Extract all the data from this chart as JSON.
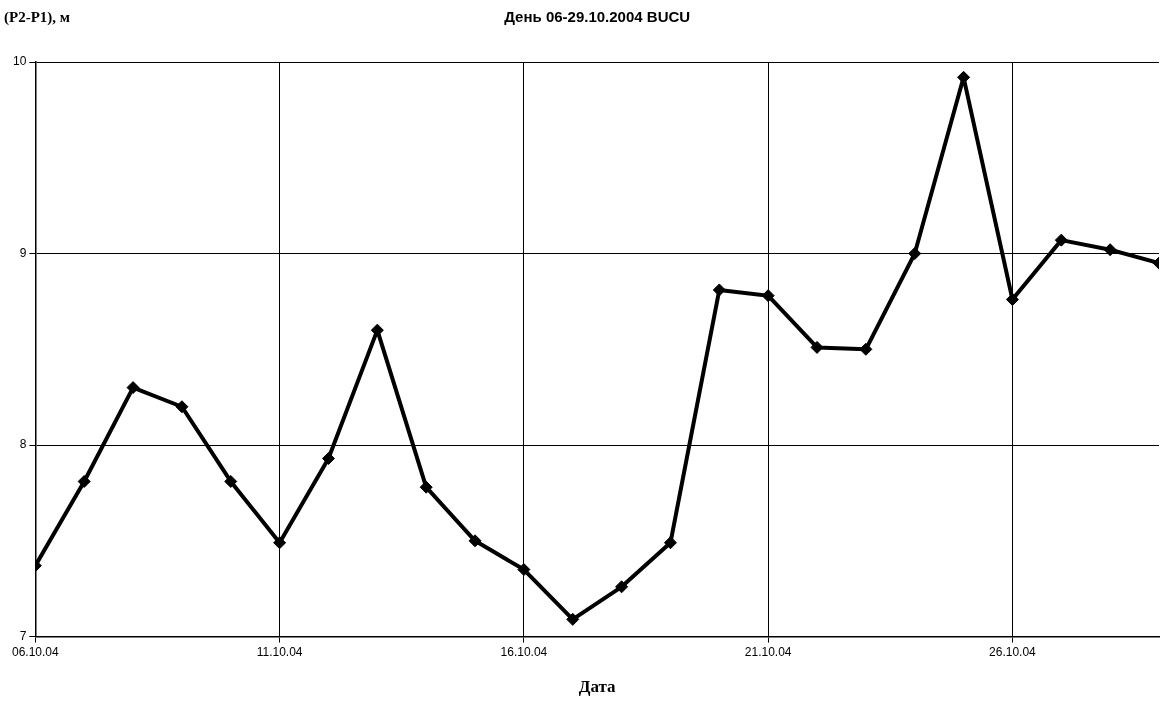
{
  "chart_data": {
    "type": "line",
    "title": "День 06-29.10.2004 BUCU",
    "xlabel": "Дата",
    "ylabel": "(P2-P1), м",
    "x": [
      "2004-10-06",
      "2004-10-07",
      "2004-10-08",
      "2004-10-09",
      "2004-10-10",
      "2004-10-11",
      "2004-10-12",
      "2004-10-13",
      "2004-10-14",
      "2004-10-15",
      "2004-10-16",
      "2004-10-17",
      "2004-10-18",
      "2004-10-19",
      "2004-10-20",
      "2004-10-21",
      "2004-10-22",
      "2004-10-23",
      "2004-10-24",
      "2004-10-25",
      "2004-10-26",
      "2004-10-27",
      "2004-10-28",
      "2004-10-29"
    ],
    "series": [
      {
        "color": "#000000",
        "values": [
          7.37,
          7.81,
          8.3,
          8.2,
          7.81,
          7.49,
          7.93,
          8.6,
          7.78,
          7.5,
          7.35,
          7.09,
          7.26,
          7.49,
          8.81,
          8.78,
          8.51,
          8.5,
          9.0,
          9.92,
          8.76,
          9.07,
          9.02,
          8.95
        ]
      }
    ],
    "xlim": [
      "2004-10-06",
      "2004-10-29"
    ],
    "xticks": [
      {
        "value": "2004-10-06",
        "label": "06.10.04"
      },
      {
        "value": "2004-10-11",
        "label": "11.10.04"
      },
      {
        "value": "2004-10-16",
        "label": "16.10.04"
      },
      {
        "value": "2004-10-21",
        "label": "21.10.04"
      },
      {
        "value": "2004-10-26",
        "label": "26.10.04"
      }
    ],
    "ylim": [
      7,
      10
    ],
    "yticks": [
      7,
      8,
      9,
      10
    ],
    "grid": true,
    "marker": "diamond",
    "line_style": "solid"
  }
}
